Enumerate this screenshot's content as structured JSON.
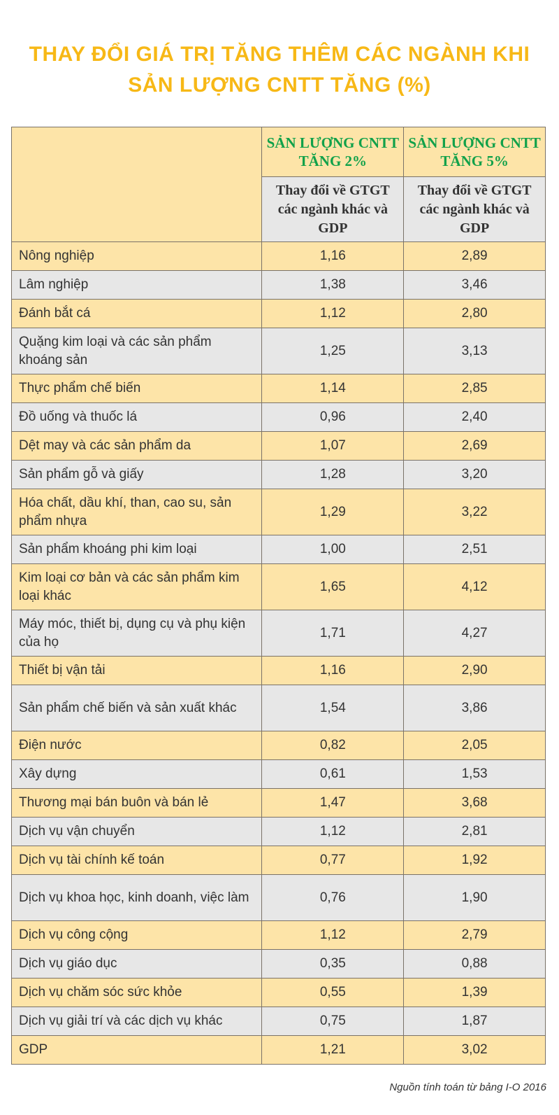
{
  "title": [
    "THAY ĐỔI GIÁ TRỊ TĂNG THÊM CÁC NGÀNH KHI",
    "SẢN LƯỢNG CNTT TĂNG (%)"
  ],
  "headers": {
    "group": [
      "SẢN LƯỢNG CNTT TĂNG 2%",
      "SẢN LƯỢNG CNTT TĂNG 5%"
    ],
    "sub": [
      "Thay đổi về GTGT các ngành khác và GDP",
      "Thay đổi về GTGT các ngành khác và GDP"
    ]
  },
  "rows": [
    {
      "name": "Nông nghiệp",
      "v2": "1,16",
      "v5": "2,89"
    },
    {
      "name": "Lâm nghiệp",
      "v2": "1,38",
      "v5": "3,46"
    },
    {
      "name": "Đánh bắt cá",
      "v2": "1,12",
      "v5": "2,80"
    },
    {
      "name": "Quặng kim loại và các sản phẩm khoáng sản",
      "v2": "1,25",
      "v5": "3,13"
    },
    {
      "name": "Thực phẩm chế biến",
      "v2": "1,14",
      "v5": "2,85"
    },
    {
      "name": "Đồ uống và thuốc lá",
      "v2": "0,96",
      "v5": "2,40"
    },
    {
      "name": "Dệt may và các sản phẩm da",
      "v2": "1,07",
      "v5": "2,69"
    },
    {
      "name": "Sản phẩm gỗ và giấy",
      "v2": "1,28",
      "v5": "3,20"
    },
    {
      "name": "Hóa chất, dầu khí, than, cao su, sản phẩm nhựa",
      "v2": "1,29",
      "v5": "3,22"
    },
    {
      "name": "Sản phẩm khoáng phi kim loại",
      "v2": "1,00",
      "v5": "2,51"
    },
    {
      "name": "Kim loại cơ bản và các sản phẩm kim loại khác",
      "v2": "1,65",
      "v5": "4,12"
    },
    {
      "name": "Máy móc, thiết bị, dụng cụ và phụ kiện của họ",
      "v2": "1,71",
      "v5": "4,27"
    },
    {
      "name": "Thiết bị vận tải",
      "v2": "1,16",
      "v5": "2,90"
    },
    {
      "name": "Sản phẩm chế biến và sản xuất khác",
      "v2": "1,54",
      "v5": "3,86"
    },
    {
      "name": "Điện nước",
      "v2": "0,82",
      "v5": "2,05"
    },
    {
      "name": "Xây dựng",
      "v2": "0,61",
      "v5": "1,53"
    },
    {
      "name": "Thương mại bán buôn và bán lẻ",
      "v2": "1,47",
      "v5": "3,68"
    },
    {
      "name": "Dịch vụ vận chuyển",
      "v2": "1,12",
      "v5": "2,81"
    },
    {
      "name": "Dịch vụ tài chính kế toán",
      "v2": "0,77",
      "v5": "1,92"
    },
    {
      "name": "Dịch vụ khoa học, kinh doanh, việc làm",
      "v2": "0,76",
      "v5": "1,90"
    },
    {
      "name": "Dịch vụ công cộng",
      "v2": "1,12",
      "v5": "2,79"
    },
    {
      "name": "Dịch vụ giáo dục",
      "v2": "0,35",
      "v5": "0,88"
    },
    {
      "name": "Dịch vụ chăm sóc sức khỏe",
      "v2": "0,55",
      "v5": "1,39"
    },
    {
      "name": "Dịch vụ giải trí và các dịch vụ khác",
      "v2": "0,75",
      "v5": "1,87"
    },
    {
      "name": "GDP",
      "v2": "1,21",
      "v5": "3,02"
    }
  ],
  "source": "Nguồn tính toán từ bảng I-O 2016",
  "colors": {
    "title": "#f7b816",
    "group_header": "#11a14a",
    "row_yellow": "#fde4a8",
    "row_gray": "#e7e7e7"
  }
}
